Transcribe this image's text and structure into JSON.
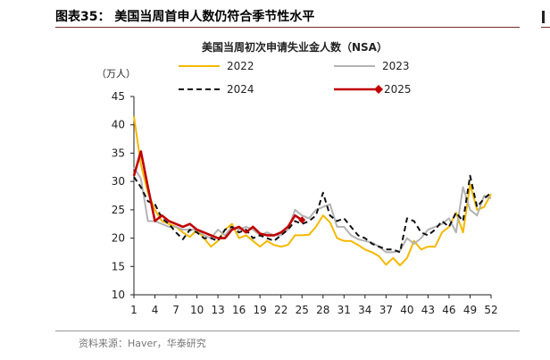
{
  "figure": {
    "label": "图表35：",
    "title": "美国当周首申人数仍符合季节性水平",
    "source": "资料来源：Haver，华泰研究"
  },
  "chart_data": {
    "type": "line",
    "title": "美国当周初次申请失业金人数（NSA）",
    "ylabel": "（万人）",
    "xlabel": "",
    "xlim": [
      1,
      52
    ],
    "ylim": [
      10,
      45
    ],
    "yticks": [
      10,
      15,
      20,
      25,
      30,
      35,
      40,
      45
    ],
    "xticks": [
      1,
      4,
      7,
      10,
      13,
      16,
      19,
      22,
      25,
      28,
      31,
      34,
      37,
      40,
      43,
      46,
      49,
      52
    ],
    "grid": false,
    "legend_position": "top",
    "series": [
      {
        "name": "2022",
        "color": "#f5b800",
        "style": "solid",
        "x": [
          1,
          2,
          3,
          4,
          5,
          6,
          7,
          8,
          9,
          10,
          11,
          12,
          13,
          14,
          15,
          16,
          17,
          18,
          19,
          20,
          21,
          22,
          23,
          24,
          25,
          26,
          27,
          28,
          29,
          30,
          31,
          32,
          33,
          34,
          35,
          36,
          37,
          38,
          39,
          40,
          41,
          42,
          43,
          44,
          45,
          46,
          47,
          48,
          49,
          50,
          51,
          52
        ],
        "values": [
          41.5,
          33.0,
          28.0,
          25.0,
          23.0,
          22.5,
          22.0,
          21.0,
          20.2,
          21.5,
          20.0,
          18.5,
          19.5,
          21.5,
          22.5,
          20.0,
          20.5,
          19.5,
          18.5,
          19.5,
          18.8,
          18.5,
          18.8,
          20.5,
          20.5,
          20.6,
          22.0,
          24.0,
          22.8,
          20.0,
          19.5,
          19.5,
          18.8,
          18.0,
          17.5,
          16.8,
          15.3,
          16.5,
          15.2,
          16.5,
          19.5,
          18.0,
          18.5,
          18.5,
          21.0,
          22.0,
          24.5,
          21.0,
          29.5,
          25.0,
          25.5,
          27.8
        ]
      },
      {
        "name": "2023",
        "color": "#b3b3b3",
        "style": "solid",
        "x": [
          1,
          2,
          3,
          4,
          5,
          6,
          7,
          8,
          9,
          10,
          11,
          12,
          13,
          14,
          15,
          16,
          17,
          18,
          19,
          20,
          21,
          22,
          23,
          24,
          25,
          26,
          27,
          28,
          29,
          30,
          31,
          32,
          33,
          34,
          35,
          36,
          37,
          38,
          39,
          40,
          41,
          42,
          43,
          44,
          45,
          46,
          47,
          48,
          49,
          50,
          51,
          52
        ],
        "values": [
          32.5,
          30.5,
          23.0,
          23.0,
          22.5,
          22.0,
          22.0,
          21.5,
          21.5,
          21.5,
          20.5,
          20.0,
          21.5,
          20.5,
          22.0,
          21.5,
          22.0,
          21.5,
          20.5,
          21.0,
          20.5,
          20.5,
          21.5,
          25.0,
          24.0,
          23.5,
          25.0,
          25.5,
          26.0,
          22.0,
          22.0,
          20.5,
          19.8,
          19.5,
          19.2,
          18.5,
          17.5,
          17.5,
          17.8,
          20.0,
          19.0,
          20.0,
          21.5,
          22.0,
          22.5,
          23.5,
          21.0,
          29.0,
          25.0,
          24.0,
          27.5,
          27.0
        ]
      },
      {
        "name": "2024",
        "color": "#111111",
        "style": "dashed",
        "x": [
          1,
          2,
          3,
          4,
          5,
          6,
          7,
          8,
          9,
          10,
          11,
          12,
          13,
          14,
          15,
          16,
          17,
          18,
          19,
          20,
          21,
          22,
          23,
          24,
          25,
          26,
          27,
          28,
          29,
          30,
          31,
          32,
          33,
          34,
          35,
          36,
          37,
          38,
          39,
          40,
          41,
          42,
          43,
          44,
          45,
          46,
          47,
          48,
          49,
          50,
          51,
          52
        ],
        "values": [
          30.8,
          29.0,
          26.5,
          26.0,
          23.5,
          22.5,
          21.0,
          19.8,
          21.5,
          21.0,
          20.0,
          20.0,
          19.5,
          21.5,
          22.0,
          21.0,
          21.5,
          20.0,
          20.5,
          20.0,
          19.5,
          20.5,
          21.5,
          23.0,
          22.5,
          23.0,
          24.0,
          28.0,
          24.0,
          23.0,
          23.5,
          22.0,
          20.5,
          20.0,
          19.0,
          18.5,
          18.0,
          18.0,
          17.5,
          23.5,
          23.0,
          21.0,
          20.5,
          21.5,
          23.0,
          22.0,
          24.5,
          23.0,
          31.0,
          25.5,
          27.0,
          28.0
        ]
      },
      {
        "name": "2025",
        "color": "#c00000",
        "style": "solid",
        "marker": "diamond",
        "x": [
          1,
          2,
          3,
          4,
          5,
          6,
          7,
          8,
          9,
          10,
          11,
          12,
          13,
          14,
          15,
          16,
          17,
          18,
          19,
          20,
          21,
          22,
          23,
          24,
          25
        ],
        "values": [
          31.0,
          35.3,
          29.0,
          23.0,
          24.0,
          23.0,
          22.5,
          22.0,
          22.5,
          21.5,
          21.0,
          20.5,
          20.0,
          20.0,
          21.5,
          22.0,
          21.0,
          22.0,
          20.8,
          20.5,
          20.5,
          21.0,
          22.0,
          24.0,
          23.2
        ]
      }
    ]
  }
}
